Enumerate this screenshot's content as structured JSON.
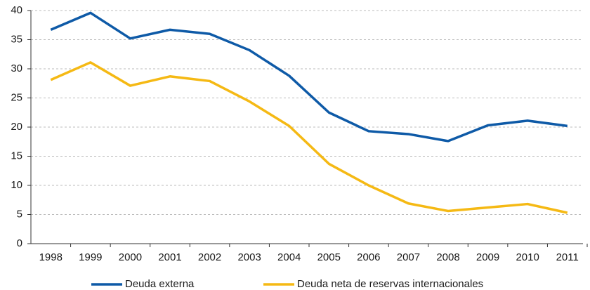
{
  "chart_data": {
    "type": "line",
    "categories": [
      "1998",
      "1999",
      "2000",
      "2001",
      "2002",
      "2003",
      "2004",
      "2005",
      "2006",
      "2007",
      "2008",
      "2009",
      "2010",
      "2011"
    ],
    "series": [
      {
        "name": "Deuda externa",
        "color": "#0e5aa7",
        "values": [
          36.7,
          39.6,
          35.2,
          36.7,
          36.0,
          33.2,
          28.8,
          22.5,
          19.3,
          18.8,
          17.6,
          20.3,
          21.1,
          20.2
        ]
      },
      {
        "name": "Deuda neta de reservas internacionales",
        "color": "#f5b914",
        "values": [
          28.1,
          31.1,
          27.1,
          28.7,
          27.9,
          24.4,
          20.2,
          13.7,
          10.0,
          6.9,
          5.6,
          6.2,
          6.8,
          5.3
        ]
      }
    ],
    "ylim": [
      0,
      40
    ],
    "yticks": [
      0,
      5,
      10,
      15,
      20,
      25,
      30,
      35,
      40
    ],
    "grid": true,
    "legend": "bottom"
  }
}
